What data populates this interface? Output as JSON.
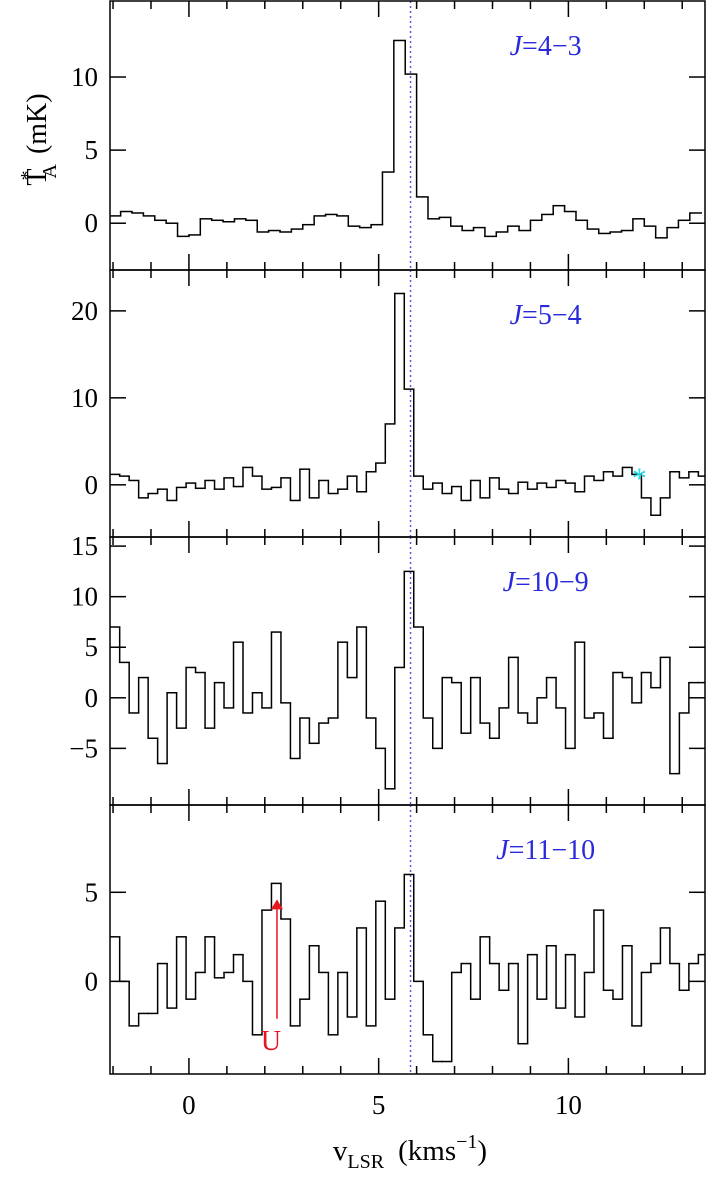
{
  "chart_data": [
    {
      "type": "step",
      "title": {
        "prefix": "J",
        "rest": "=4−3"
      },
      "color": "#000000",
      "x": [
        -1.95,
        -1.65,
        -1.35,
        -1.05,
        -0.75,
        -0.45,
        -0.15,
        0.15,
        0.45,
        0.75,
        1.05,
        1.35,
        1.65,
        1.95,
        2.25,
        2.55,
        2.85,
        3.15,
        3.45,
        3.75,
        4.05,
        4.35,
        4.65,
        4.95,
        5.25,
        5.55,
        5.85,
        6.15,
        6.45,
        6.75,
        7.05,
        7.35,
        7.65,
        7.95,
        8.25,
        8.55,
        8.85,
        9.15,
        9.45,
        9.75,
        10.05,
        10.35,
        10.65,
        10.95,
        11.25,
        11.55,
        11.85,
        12.15,
        12.45,
        12.75,
        13.05,
        13.35
      ],
      "values": [
        0.5,
        0.8,
        0.7,
        0.5,
        0.2,
        0.0,
        -0.9,
        -0.8,
        0.3,
        0.2,
        0.1,
        0.3,
        0.2,
        -0.6,
        -0.5,
        -0.6,
        -0.4,
        -0.1,
        0.5,
        0.6,
        0.5,
        -0.2,
        -0.3,
        -0.1,
        3.5,
        12.5,
        10.2,
        1.8,
        0.3,
        0.4,
        -0.2,
        -0.5,
        -0.3,
        -0.9,
        -0.6,
        -0.2,
        -0.5,
        0.2,
        0.6,
        1.2,
        0.8,
        0.2,
        -0.4,
        -0.7,
        -0.6,
        -0.5,
        0.3,
        -0.2,
        -1.0,
        -0.3,
        0.2,
        0.7
      ],
      "xlim": [
        -2.08,
        13.6
      ],
      "xticks": [
        0,
        5,
        10
      ],
      "xminor": [
        -2,
        -1,
        1,
        2,
        3,
        4,
        6,
        7,
        8,
        9,
        11,
        12,
        13
      ],
      "show_xtick_labels": false,
      "ylim": [
        -3.2,
        15.2
      ],
      "yticks": [
        0,
        5,
        10
      ],
      "vline": 5.84,
      "vline_color": "#5a5ad8",
      "y_label": {
        "main": "T",
        "sup": "*",
        "sub": "A",
        "unit": "(mK)"
      }
    },
    {
      "type": "step",
      "title": {
        "prefix": "J",
        "rest": "=5−4"
      },
      "color": "#000000",
      "x": [
        -1.95,
        -1.7,
        -1.45,
        -1.2,
        -0.95,
        -0.7,
        -0.45,
        -0.2,
        0.05,
        0.3,
        0.55,
        0.8,
        1.05,
        1.3,
        1.55,
        1.8,
        2.05,
        2.3,
        2.55,
        2.8,
        3.05,
        3.3,
        3.55,
        3.8,
        4.05,
        4.3,
        4.55,
        4.8,
        5.05,
        5.3,
        5.55,
        5.8,
        6.05,
        6.3,
        6.55,
        6.8,
        7.05,
        7.3,
        7.55,
        7.8,
        8.05,
        8.3,
        8.55,
        8.8,
        9.05,
        9.3,
        9.55,
        9.8,
        10.05,
        10.3,
        10.55,
        10.8,
        11.05,
        11.3,
        11.55,
        11.8,
        12.05,
        12.3,
        12.55,
        12.8,
        13.05,
        13.3,
        13.55
      ],
      "values": [
        1.2,
        1.0,
        0.5,
        -1.5,
        -1.0,
        -0.5,
        -1.8,
        -0.3,
        0.2,
        -0.4,
        0.5,
        -0.5,
        0.8,
        -0.2,
        2.0,
        1.0,
        -0.5,
        -0.3,
        0.8,
        -1.8,
        1.8,
        -1.5,
        0.5,
        -1.0,
        -0.5,
        1.0,
        -0.8,
        1.5,
        2.5,
        7.0,
        22.0,
        11.0,
        1.0,
        -0.5,
        0.2,
        -1.0,
        -0.2,
        -1.8,
        0.5,
        -1.5,
        0.8,
        -0.5,
        -1.0,
        0.3,
        -0.5,
        0.2,
        -0.3,
        0.5,
        0.2,
        -0.8,
        1.0,
        0.5,
        1.5,
        1.0,
        2.0,
        1.2,
        -1.5,
        -3.5,
        -1.5,
        1.5,
        0.8,
        1.5,
        1.0
      ],
      "xlim": [
        -2.08,
        13.6
      ],
      "xticks": [
        0,
        5,
        10
      ],
      "xminor": [
        -2,
        -1,
        1,
        2,
        3,
        4,
        6,
        7,
        8,
        9,
        11,
        12,
        13
      ],
      "show_xtick_labels": false,
      "ylim": [
        -6.0,
        24.7
      ],
      "yticks": [
        0,
        10,
        20
      ],
      "vline": 5.84,
      "vline_color": "#5a5ad8",
      "marker": {
        "label": "*",
        "x": 11.87,
        "y": 1.7,
        "color": "#22dde8"
      }
    },
    {
      "type": "step",
      "title": {
        "prefix": "J",
        "rest": "=10−9"
      },
      "color": "#000000",
      "x": [
        -1.95,
        -1.7,
        -1.45,
        -1.2,
        -0.95,
        -0.7,
        -0.45,
        -0.2,
        0.05,
        0.3,
        0.55,
        0.8,
        1.05,
        1.3,
        1.55,
        1.8,
        2.05,
        2.3,
        2.55,
        2.8,
        3.05,
        3.3,
        3.55,
        3.8,
        4.05,
        4.3,
        4.55,
        4.8,
        5.05,
        5.3,
        5.55,
        5.8,
        6.05,
        6.3,
        6.55,
        6.8,
        7.05,
        7.3,
        7.55,
        7.8,
        8.05,
        8.3,
        8.55,
        8.8,
        9.05,
        9.3,
        9.55,
        9.8,
        10.05,
        10.3,
        10.55,
        10.8,
        11.05,
        11.3,
        11.55,
        11.8,
        12.05,
        12.3,
        12.55,
        12.8,
        13.05,
        13.3,
        13.55
      ],
      "values": [
        7,
        3.5,
        -1.5,
        2,
        -4,
        -6.5,
        0.5,
        -3,
        3,
        2.5,
        -3,
        1.5,
        -1,
        5.5,
        -1.5,
        0.5,
        -1,
        6.5,
        -0.5,
        -6,
        -2,
        -4.5,
        -2.5,
        -2,
        5.5,
        2,
        7,
        -2,
        -5,
        -9,
        3,
        12.5,
        7,
        -2,
        -5,
        2,
        1.5,
        -3.5,
        2,
        -2.5,
        -4,
        -1,
        4,
        -1.5,
        -2.5,
        0,
        2,
        -1,
        -5,
        5.5,
        -2,
        -1.5,
        -4,
        2.5,
        2,
        -0.5,
        2.5,
        1,
        4,
        -7.5,
        -1.5,
        1.5,
        1.5
      ],
      "xlim": [
        -2.08,
        13.6
      ],
      "xticks": [
        0,
        5,
        10
      ],
      "xminor": [
        -2,
        -1,
        1,
        2,
        3,
        4,
        6,
        7,
        8,
        9,
        11,
        12,
        13
      ],
      "show_xtick_labels": false,
      "ylim": [
        -10.6,
        15.9
      ],
      "yticks": [
        {
          "value": -5,
          "label": "−5"
        },
        0,
        5,
        10,
        15
      ],
      "vline": 5.84,
      "vline_color": "#5a5ad8"
    },
    {
      "type": "step",
      "title": {
        "prefix": "J",
        "rest": "=11−10"
      },
      "color": "#000000",
      "x": [
        -1.95,
        -1.7,
        -1.45,
        -1.2,
        -0.95,
        -0.7,
        -0.45,
        -0.2,
        0.05,
        0.3,
        0.55,
        0.8,
        1.05,
        1.3,
        1.55,
        1.8,
        2.05,
        2.3,
        2.55,
        2.8,
        3.05,
        3.3,
        3.55,
        3.8,
        4.05,
        4.3,
        4.55,
        4.8,
        5.05,
        5.3,
        5.55,
        5.8,
        6.05,
        6.3,
        6.55,
        6.8,
        7.05,
        7.3,
        7.55,
        7.8,
        8.05,
        8.3,
        8.55,
        8.8,
        9.05,
        9.3,
        9.55,
        9.8,
        10.05,
        10.3,
        10.55,
        10.8,
        11.05,
        11.3,
        11.55,
        11.8,
        12.05,
        12.3,
        12.55,
        12.8,
        13.05,
        13.3,
        13.55
      ],
      "values": [
        2.5,
        0,
        -2.5,
        -1.8,
        -1.8,
        1,
        -1.5,
        2.5,
        -1,
        0.5,
        2.5,
        0.2,
        0.5,
        1.5,
        0,
        -3,
        4,
        5.5,
        3.5,
        -2.5,
        -1,
        2,
        0.5,
        -3,
        0.5,
        -2,
        3,
        -2.5,
        4.5,
        -1,
        3,
        6,
        0,
        -3,
        -4.5,
        -4.5,
        0.5,
        1,
        -1,
        2.5,
        1,
        -0.5,
        1,
        -3.5,
        1.5,
        -1,
        2,
        -1.5,
        1.5,
        -2,
        0.5,
        4,
        -0.5,
        -1,
        2,
        -2.5,
        0.5,
        1,
        3,
        1,
        -0.5,
        1,
        1.5
      ],
      "xlim": [
        -2.08,
        13.6
      ],
      "xticks": [
        0,
        5,
        10
      ],
      "xminor": [
        -2,
        -1,
        1,
        2,
        3,
        4,
        6,
        7,
        8,
        9,
        11,
        12,
        13
      ],
      "show_xtick_labels": true,
      "ylim": [
        -5.2,
        9.9
      ],
      "yticks": [
        0,
        5
      ],
      "vline": 5.84,
      "vline_color": "#5a5ad8",
      "marker": {
        "label": "U",
        "x": 2.32,
        "y_from": -2.1,
        "y_to": 4.6,
        "color": "#e8141e"
      },
      "x_label": {
        "main": "v",
        "sub": "LSR",
        "unit": "(kms",
        "sup": "−1",
        "close": ")"
      }
    }
  ]
}
